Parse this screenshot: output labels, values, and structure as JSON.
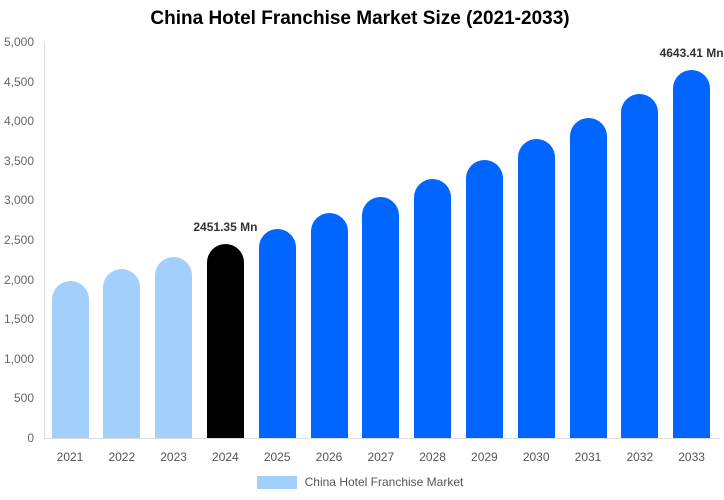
{
  "chart_data": {
    "type": "bar",
    "title": "China Hotel Franchise Market Size (2021-2033)",
    "xlabel": "",
    "ylabel": "",
    "ylim": [
      0,
      5000
    ],
    "yticks": [
      0,
      500,
      1000,
      1500,
      2000,
      2500,
      3000,
      3500,
      4000,
      4500,
      5000
    ],
    "ytick_labels": [
      "0",
      "500",
      "1,000",
      "1,500",
      "2,000",
      "2,500",
      "3,000",
      "3,500",
      "4,000",
      "4,500",
      "5,000"
    ],
    "categories": [
      "2021",
      "2022",
      "2023",
      "2024",
      "2025",
      "2026",
      "2027",
      "2028",
      "2029",
      "2030",
      "2031",
      "2032",
      "2033"
    ],
    "series": [
      {
        "name": "China Hotel Franchise Market",
        "values": [
          1980,
          2130,
          2285,
          2451.35,
          2640,
          2835,
          3040,
          3265,
          3510,
          3770,
          4045,
          4340,
          4643.41
        ]
      }
    ],
    "bar_colors": [
      "#a3cffd",
      "#a3cffd",
      "#a3cffd",
      "#000000",
      "#0066ff",
      "#0066ff",
      "#0066ff",
      "#0066ff",
      "#0066ff",
      "#0066ff",
      "#0066ff",
      "#0066ff",
      "#0066ff"
    ],
    "annotations": [
      {
        "category": "2024",
        "text": "2451.35 Mn"
      },
      {
        "category": "2033",
        "text": "4643.41 Mn"
      }
    ],
    "legend": {
      "position": "bottom",
      "entries": [
        "China Hotel Franchise Market"
      ],
      "swatch_color": "#a3cffd"
    },
    "grid": false
  }
}
